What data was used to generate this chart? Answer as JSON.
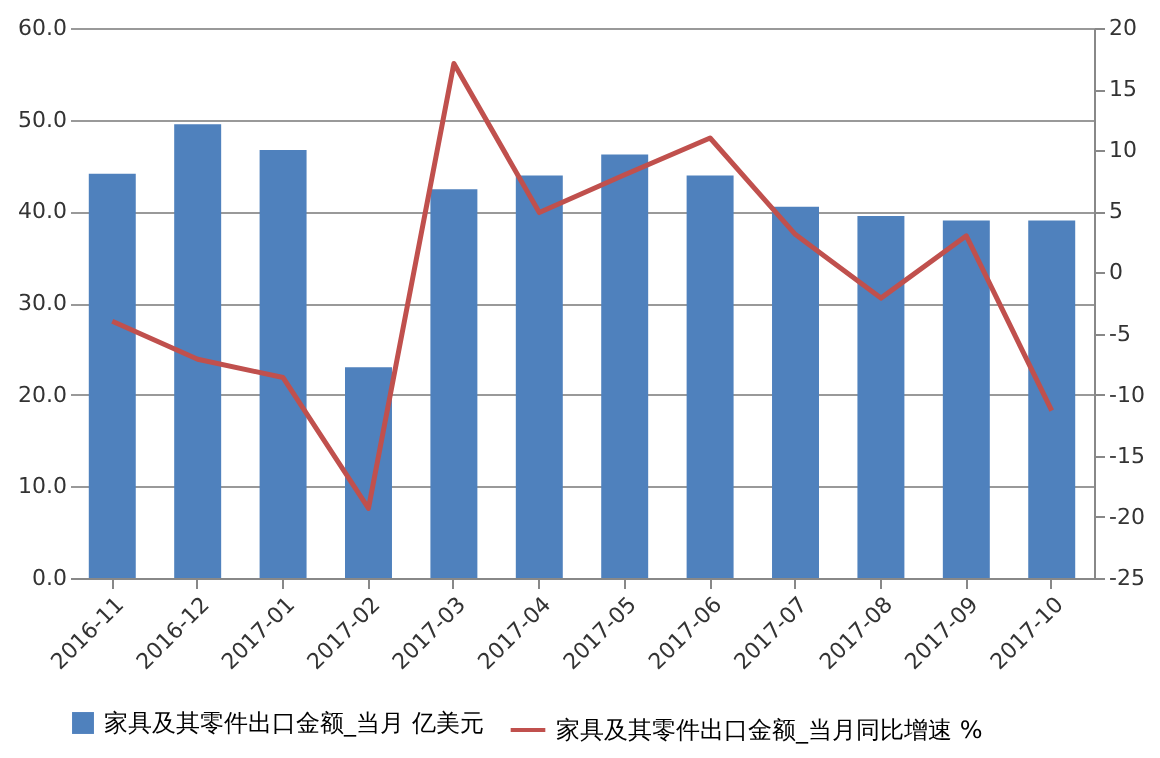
{
  "chart_data": {
    "type": "bar",
    "categories": [
      "2016-11",
      "2016-12",
      "2017-01",
      "2017-02",
      "2017-03",
      "2017-04",
      "2017-05",
      "2017-06",
      "2017-07",
      "2017-08",
      "2017-09",
      "2017-10"
    ],
    "series": [
      {
        "name": "家具及其零件出口金额_当月  亿美元",
        "color": "#4f81bd",
        "values": [
          44.1,
          49.5,
          46.7,
          23.0,
          42.4,
          43.9,
          46.2,
          43.9,
          40.5,
          39.5,
          39.0,
          39.0
        ]
      },
      {
        "name": "家具及其零件出口金额_当月同比增速  %",
        "type": "line",
        "axis": "y2",
        "color": "#c0504d",
        "values": [
          -4.0,
          -7.1,
          -8.6,
          -19.3,
          17.1,
          4.9,
          8.0,
          11.0,
          3.1,
          -2.1,
          3.0,
          -11.3
        ]
      }
    ],
    "ylim": [
      0,
      60
    ],
    "yticks": [
      {
        "value": 0,
        "label": "0.0"
      },
      {
        "value": 10,
        "label": "10.0"
      },
      {
        "value": 20,
        "label": "20.0"
      },
      {
        "value": 30,
        "label": "30.0"
      },
      {
        "value": 40,
        "label": "40.0"
      },
      {
        "value": 50,
        "label": "50.0"
      },
      {
        "value": 60,
        "label": "60.0"
      }
    ],
    "y2lim": [
      -25,
      20
    ],
    "y2ticks": [
      -25,
      -20,
      -15,
      -10,
      -5,
      0,
      5,
      10,
      15,
      20
    ],
    "grid": "y",
    "legend": "bottom",
    "marker": "none",
    "line_style": "solid"
  }
}
